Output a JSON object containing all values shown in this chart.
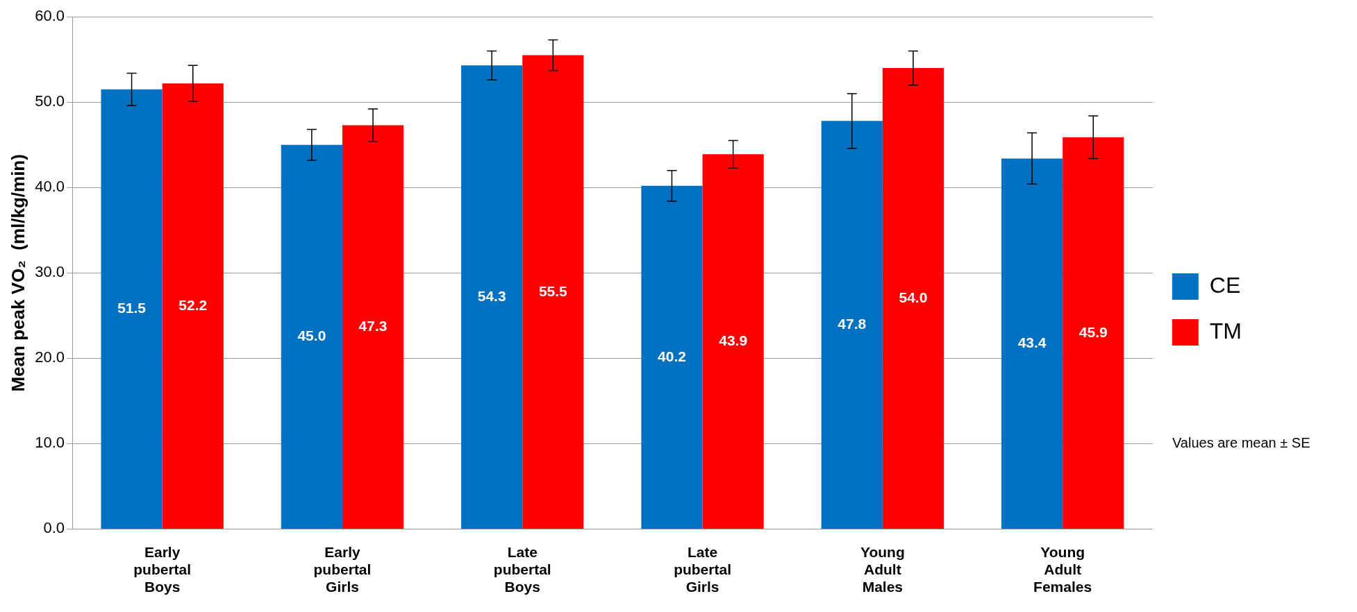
{
  "chart_data": {
    "type": "bar",
    "ylabel": "Mean peak VO₂  (ml/kg/min)",
    "categories": [
      "Early pubertal Boys",
      "Early pubertal Girls",
      "Late pubertal Boys",
      "Late pubertal Girls",
      "Young Adult Males",
      "Young Adult Females"
    ],
    "series": [
      {
        "name": "CE",
        "color": "#0070c0",
        "values": [
          51.5,
          45.0,
          54.3,
          40.2,
          47.8,
          43.4
        ],
        "value_labels": [
          "51.5",
          "45.0",
          "54.3",
          "40.2",
          "47.8",
          "43.4"
        ],
        "errors": [
          1.9,
          1.8,
          1.7,
          1.8,
          3.2,
          3.0
        ]
      },
      {
        "name": "TM",
        "color": "#ff0000",
        "values": [
          52.2,
          47.3,
          55.5,
          43.9,
          54.0,
          45.9
        ],
        "value_labels": [
          "52.2",
          "47.3",
          "55.5",
          "43.9",
          "54.0",
          "45.9"
        ],
        "errors": [
          2.1,
          1.9,
          1.8,
          1.6,
          2.0,
          2.5
        ]
      }
    ],
    "ylim": [
      0,
      60
    ],
    "yticks": [
      {
        "value": 0,
        "label": "0.0"
      },
      {
        "value": 10,
        "label": "10.0"
      },
      {
        "value": 20,
        "label": "20.0"
      },
      {
        "value": 30,
        "label": "30.0"
      },
      {
        "value": 40,
        "label": "40.0"
      },
      {
        "value": 50,
        "label": "50.0"
      },
      {
        "value": 60,
        "label": "60.0"
      }
    ],
    "grid": "y",
    "legend": "right",
    "annotations": [
      "Values are mean ± SE"
    ]
  }
}
